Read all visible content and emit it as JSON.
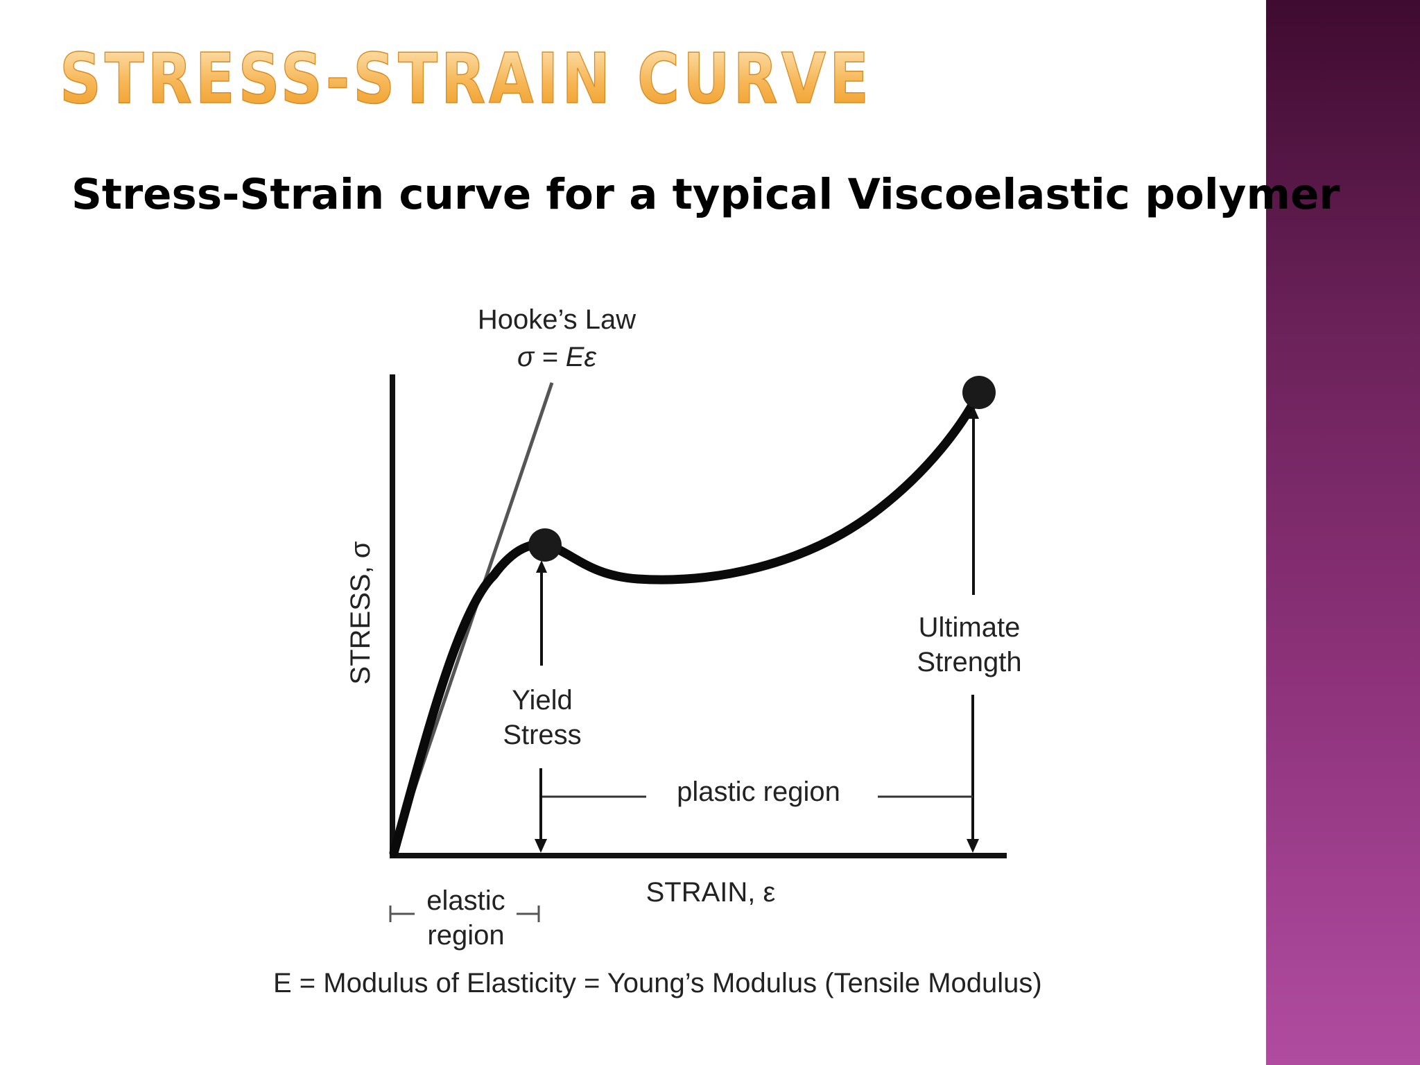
{
  "slide": {
    "title": "STRESS-STRAIN CURVE",
    "subtitle": "Stress-Strain curve for a typical Viscoelastic polymer",
    "accent_colors": {
      "title_gradient_top": "#fce2b0",
      "title_gradient_bottom": "#f0a030",
      "side_band_top": "#3f0b30",
      "side_band_bottom": "#b04ca0"
    }
  },
  "diagram": {
    "hookes_law": {
      "line1": "Hooke’s Law",
      "line2": "σ = Eε"
    },
    "y_axis_label": "STRESS, σ",
    "x_axis_label": "STRAIN, ε",
    "yield_label": {
      "line1": "Yield",
      "line2": "Stress"
    },
    "ultimate_label": {
      "line1": "Ultimate",
      "line2": "Strength"
    },
    "plastic_region": "plastic region",
    "elastic_region": {
      "line1": "elastic",
      "line2": "region"
    },
    "modulus_caption": "E = Modulus of Elasticity = Young’s Modulus (Tensile Modulus)"
  }
}
